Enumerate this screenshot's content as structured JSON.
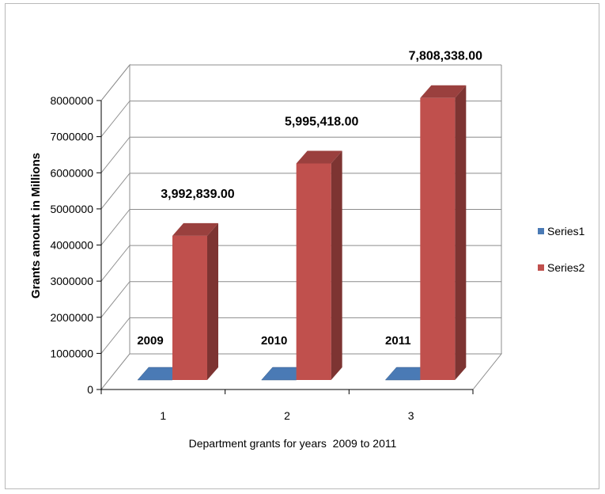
{
  "chart_data": {
    "type": "bar",
    "categories": [
      "1",
      "2",
      "3"
    ],
    "series": [
      {
        "name": "Series1",
        "values": [
          2009,
          2010,
          2011
        ],
        "color": "#4a7ab5"
      },
      {
        "name": "Series2",
        "values": [
          3992839,
          5995418,
          7808338
        ],
        "color": "#c0504d"
      }
    ],
    "data_labels": {
      "Series1": [
        "2009",
        "2010",
        "2011"
      ],
      "Series2": [
        "3,992,839.00",
        "5,995,418.00",
        "7,808,338.00"
      ]
    },
    "y_ticks": [
      "0",
      "1000000",
      "2000000",
      "3000000",
      "4000000",
      "5000000",
      "6000000",
      "7000000",
      "8000000"
    ],
    "ylim": [
      0,
      8000000
    ],
    "xlabel": "Department grants for years  2009 to 2011",
    "ylabel": "Grants amount  in Millions",
    "grid": true,
    "legend_position": "right"
  }
}
